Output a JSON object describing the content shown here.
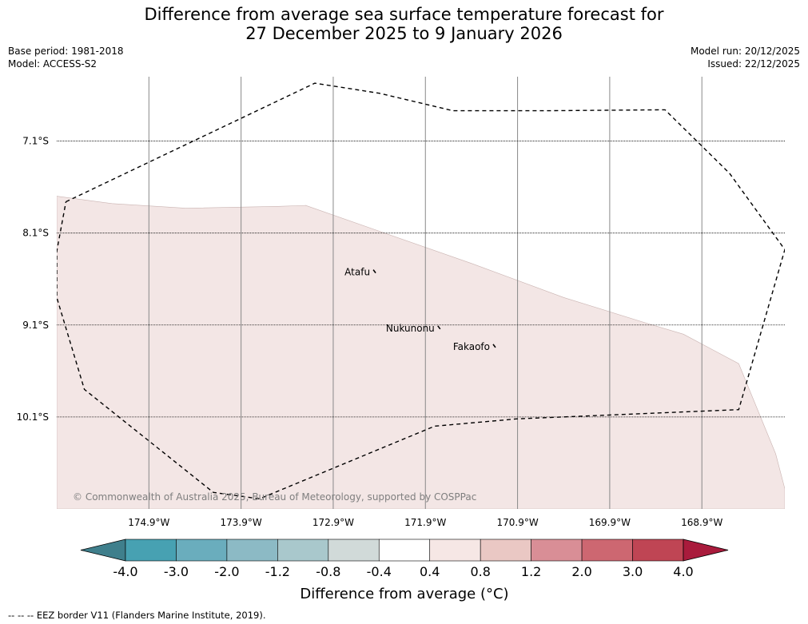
{
  "title_line1": "Difference from average sea surface temperature forecast for",
  "title_line2": "27 December 2025 to 9 January 2026",
  "meta": {
    "base_period": "Base period: 1981-2018",
    "model": "Model: ACCESS-S2",
    "model_run": "Model run: 20/12/2025",
    "issued": "Issued: 22/12/2025"
  },
  "copyright": "© Commonwealth of Australia 2025, Bureau of Meteorology, supported by COSPPac",
  "footnote": "--  --  -- EEZ border V11 (Flanders Marine Institute, 2019).",
  "colors": {
    "anomaly_fill": "#f3e6e5",
    "grid": "#888888",
    "eez": "#000000"
  },
  "chart_data": {
    "type": "map",
    "lon_ticks": [
      174.9,
      173.9,
      172.9,
      171.9,
      170.9,
      169.9,
      168.9
    ],
    "lon_labels": [
      "174.9°W",
      "173.9°W",
      "172.9°W",
      "171.9°W",
      "170.9°W",
      "169.9°W",
      "168.9°W"
    ],
    "lat_ticks": [
      7.1,
      8.1,
      9.1,
      10.1
    ],
    "lat_labels": [
      "7.1°S",
      "8.1°S",
      "9.1°S",
      "10.1°S"
    ],
    "lon_range_W": [
      175.9,
      168.0
    ],
    "lat_range_S": [
      6.4,
      11.1
    ],
    "islands": [
      {
        "name": "Atafu",
        "lon_W": 172.5,
        "lat_S": 8.56
      },
      {
        "name": "Nukunonu",
        "lon_W": 171.8,
        "lat_S": 9.17
      },
      {
        "name": "Fakaofo",
        "lon_W": 171.2,
        "lat_S": 9.37
      }
    ],
    "anomaly_region": {
      "value_range_C": [
        0.4,
        0.8
      ],
      "boundary_lonW_latS": [
        [
          175.9,
          7.7
        ],
        [
          175.3,
          7.78
        ],
        [
          174.5,
          7.83
        ],
        [
          173.5,
          7.81
        ],
        [
          173.2,
          7.8
        ],
        [
          172.4,
          8.08
        ],
        [
          171.4,
          8.43
        ],
        [
          170.4,
          8.8
        ],
        [
          169.5,
          9.08
        ],
        [
          169.1,
          9.2
        ],
        [
          168.5,
          9.52
        ],
        [
          168.1,
          10.5
        ],
        [
          168.0,
          10.88
        ],
        [
          168.0,
          11.1
        ],
        [
          175.9,
          11.1
        ]
      ]
    },
    "eez_border_lonW_latS": [
      [
        175.8,
        7.76
      ],
      [
        173.1,
        6.47
      ],
      [
        172.4,
        6.58
      ],
      [
        171.6,
        6.77
      ],
      [
        170.6,
        6.77
      ],
      [
        169.3,
        6.76
      ],
      [
        168.6,
        7.45
      ],
      [
        168.0,
        8.28
      ],
      [
        168.5,
        10.02
      ],
      [
        170.9,
        10.12
      ],
      [
        171.8,
        10.2
      ],
      [
        173.7,
        10.99
      ],
      [
        174.2,
        10.92
      ],
      [
        175.6,
        9.8
      ],
      [
        175.9,
        8.8
      ],
      [
        175.9,
        8.3
      ],
      [
        175.8,
        7.76
      ]
    ],
    "colorbar": {
      "label": "Difference from average (°C)",
      "tick_labels": [
        "-4.0",
        "-3.0",
        "-2.0",
        "-1.2",
        "-0.8",
        "-0.4",
        "0.4",
        "0.8",
        "1.2",
        "2.0",
        "3.0",
        "4.0"
      ],
      "colors": [
        "#3f7f8c",
        "#47a1b2",
        "#6aadbd",
        "#8cbac5",
        "#a9c8cc",
        "#d1dad9",
        "#ffffff",
        "#f6e7e5",
        "#eac8c4",
        "#d98e96",
        "#cd6771",
        "#bf4554",
        "#a91b3c"
      ]
    }
  }
}
